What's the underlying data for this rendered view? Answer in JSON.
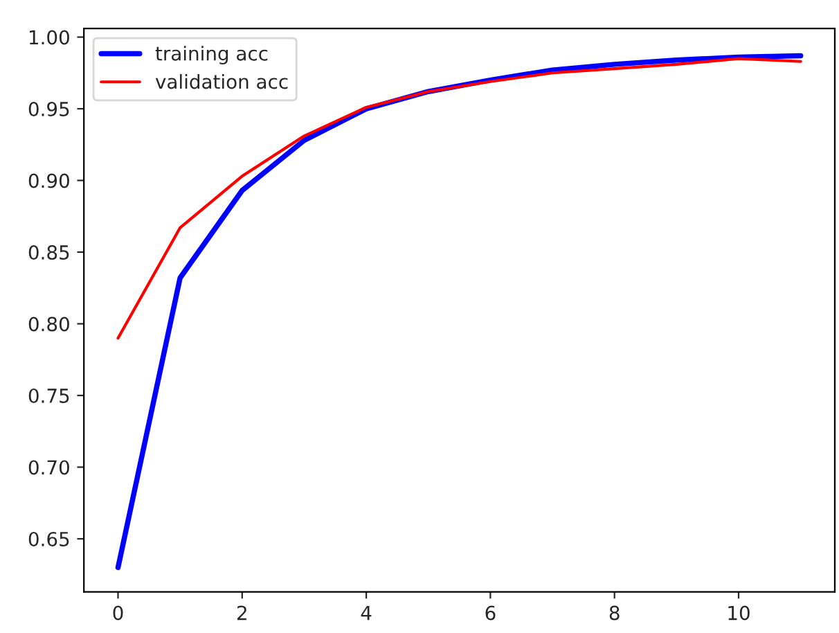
{
  "chart_data": {
    "type": "line",
    "x": [
      0,
      1,
      2,
      3,
      4,
      5,
      6,
      7,
      8,
      9,
      10,
      11
    ],
    "series": [
      {
        "name": "training acc",
        "color": "#0000ff",
        "values": [
          0.63,
          0.832,
          0.893,
          0.928,
          0.95,
          0.962,
          0.97,
          0.977,
          0.981,
          0.984,
          0.986,
          0.987
        ]
      },
      {
        "name": "validation acc",
        "color": "#ff0000",
        "values": [
          0.79,
          0.867,
          0.903,
          0.931,
          0.951,
          0.962,
          0.969,
          0.975,
          0.978,
          0.981,
          0.985,
          0.983
        ]
      }
    ],
    "xlim": [
      -0.55,
      11.55
    ],
    "ylim": [
      0.613,
      1.006
    ],
    "xticks": [
      0,
      2,
      4,
      6,
      8,
      10
    ],
    "yticks": [
      {
        "value": 0.65,
        "label": "0.65"
      },
      {
        "value": 0.7,
        "label": "0.70"
      },
      {
        "value": 0.75,
        "label": "0.75"
      },
      {
        "value": 0.8,
        "label": "0.80"
      },
      {
        "value": 0.85,
        "label": "0.85"
      },
      {
        "value": 0.9,
        "label": "0.90"
      },
      {
        "value": 0.95,
        "label": "0.95"
      },
      {
        "value": 1.0,
        "label": "1.00"
      }
    ],
    "grid": false,
    "legend": "top left"
  }
}
